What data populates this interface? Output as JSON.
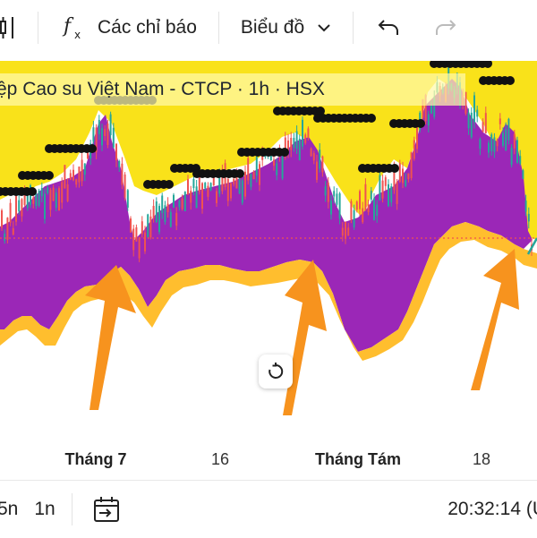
{
  "toolbar": {
    "indicators_label": "Các chỉ báo",
    "chart_type_label": "Biểu đồ"
  },
  "legend": {
    "title": "ệp Cao su Việt Nam - CTCP · 1h · HSX"
  },
  "time_axis": {
    "labels": [
      "Tháng 7",
      "16",
      "Tháng Tám",
      "18"
    ]
  },
  "bottom_bar": {
    "range_5n": "5n",
    "range_1n": "1n",
    "clock": "20:32:14 (U"
  },
  "colors": {
    "yellow_band": "#f9e21a",
    "purple_fill": "#9b27b7",
    "orange_band": "#ffbe2e",
    "arrow": "#f7931e",
    "candle_up": "#26a69a",
    "candle_down": "#ef5350"
  },
  "icons": [
    "chart-type-icon",
    "fx-icon",
    "chevron-down-icon",
    "undo-icon",
    "redo-icon",
    "reset-icon",
    "calendar-goto-icon"
  ]
}
